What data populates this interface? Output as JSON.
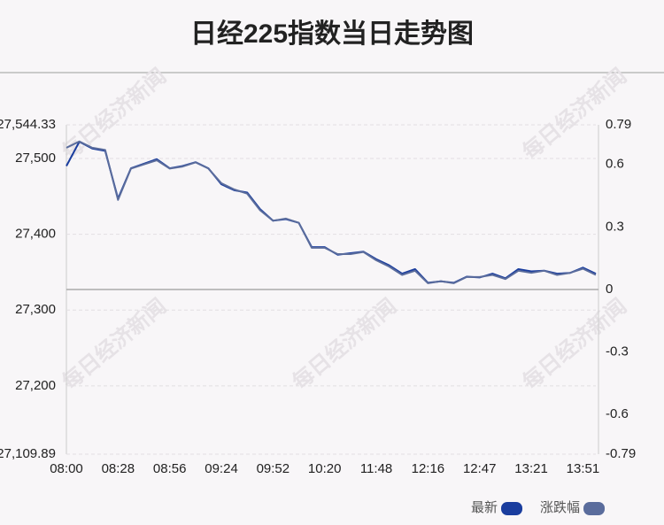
{
  "chart_data": {
    "type": "line",
    "title": "日经225指数当日走势图",
    "watermark": "每日经济新闻",
    "categories": [
      "08:00",
      null,
      null,
      null,
      "08:28",
      null,
      null,
      null,
      "08:56",
      null,
      null,
      null,
      "09:24",
      null,
      null,
      null,
      "09:52",
      null,
      null,
      null,
      "10:20",
      null,
      null,
      null,
      "11:48",
      null,
      null,
      null,
      "12:16",
      null,
      null,
      null,
      "12:47",
      null,
      null,
      null,
      "13:21",
      null,
      null,
      null,
      "13:51",
      null
    ],
    "series": [
      {
        "name": "最新",
        "color": "#1a3d9e",
        "values": [
          27490,
          27522,
          27513,
          27510,
          27447,
          27487,
          27493,
          27499,
          27487,
          27490,
          27495,
          27487,
          27466,
          27458,
          27455,
          27433,
          27418,
          27420,
          27415,
          27383,
          27383,
          27373,
          27375,
          27377,
          27367,
          27359,
          27348,
          27354,
          27336,
          27338,
          27336,
          27344,
          27343,
          27348,
          27342,
          27354,
          27351,
          27352,
          27348,
          27349,
          27356,
          27348
        ]
      },
      {
        "name": "涨跌幅",
        "color": "#5a6c9c",
        "axis": "y2",
        "values": [
          0.68,
          0.71,
          0.68,
          0.67,
          0.43,
          0.58,
          0.6,
          0.62,
          0.58,
          0.59,
          0.61,
          0.58,
          0.51,
          0.48,
          0.46,
          0.38,
          0.33,
          0.34,
          0.32,
          0.2,
          0.2,
          0.17,
          0.17,
          0.18,
          0.14,
          0.11,
          0.07,
          0.09,
          0.03,
          0.04,
          0.03,
          0.06,
          0.06,
          0.07,
          0.05,
          0.09,
          0.08,
          0.09,
          0.07,
          0.08,
          0.1,
          0.07
        ]
      }
    ],
    "ylim": [
      27109.89,
      27544.33
    ],
    "yticks": [
      {
        "value": 27109.89,
        "label": "27,109.89"
      },
      {
        "value": 27200,
        "label": "27,200"
      },
      {
        "value": 27300,
        "label": "27,300"
      },
      {
        "value": 27400,
        "label": "27,400"
      },
      {
        "value": 27500,
        "label": "27,500"
      },
      {
        "value": 27544.33,
        "label": "27,544.33"
      }
    ],
    "y2lim": [
      -0.79,
      0.79
    ],
    "y2ticks": [
      -0.79,
      -0.6,
      -0.3,
      0,
      0.3,
      0.6,
      0.79
    ],
    "grid": true
  }
}
